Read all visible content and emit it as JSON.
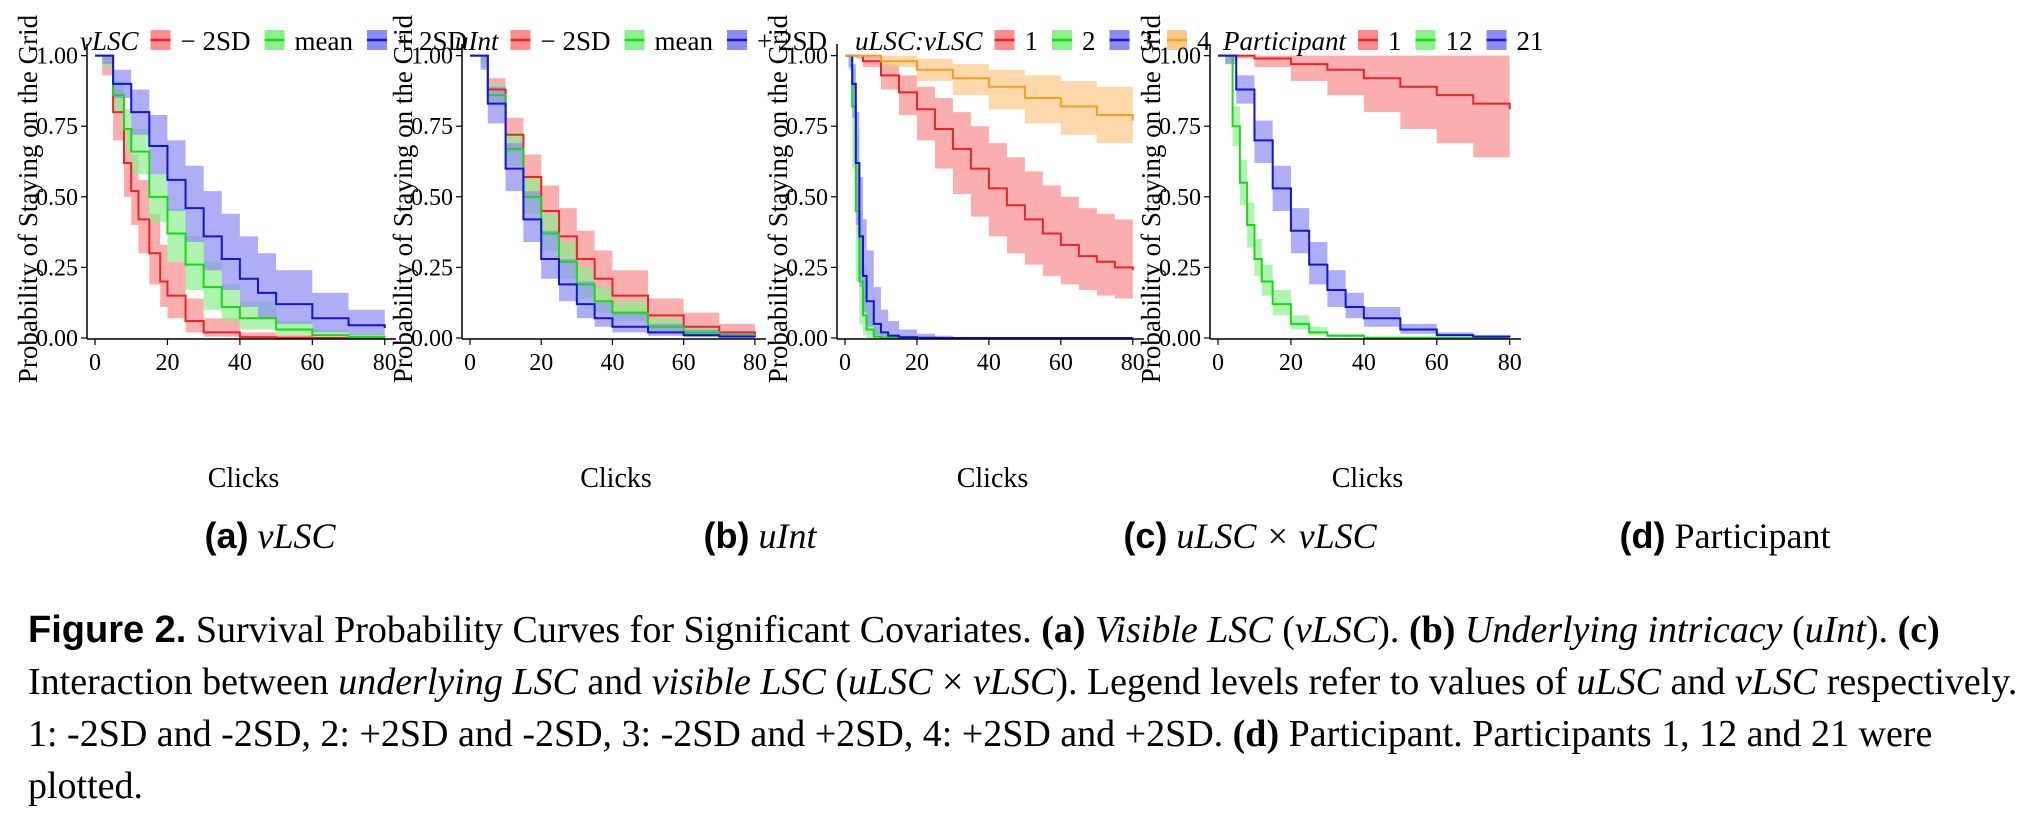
{
  "figure": {
    "label": "Figure 2.",
    "caption_parts": [
      {
        "t": "Survival Probability Curves for Significant Covariates. ",
        "s": ""
      },
      {
        "t": "(a)",
        "s": "b"
      },
      {
        "t": " ",
        "s": ""
      },
      {
        "t": "Visible LSC",
        "s": "i"
      },
      {
        "t": " (",
        "s": ""
      },
      {
        "t": "vLSC",
        "s": "i"
      },
      {
        "t": "). ",
        "s": ""
      },
      {
        "t": "(b)",
        "s": "b"
      },
      {
        "t": " ",
        "s": ""
      },
      {
        "t": "Underlying intricacy",
        "s": "i"
      },
      {
        "t": " (",
        "s": ""
      },
      {
        "t": "uInt",
        "s": "i"
      },
      {
        "t": "). ",
        "s": ""
      },
      {
        "t": "(c)",
        "s": "b"
      },
      {
        "t": " Interaction between ",
        "s": ""
      },
      {
        "t": "underlying LSC",
        "s": "i"
      },
      {
        "t": " and ",
        "s": ""
      },
      {
        "t": "visible LSC",
        "s": "i"
      },
      {
        "t": " (",
        "s": ""
      },
      {
        "t": "uLSC",
        "s": "i"
      },
      {
        "t": " × ",
        "s": ""
      },
      {
        "t": "vLSC",
        "s": "i"
      },
      {
        "t": "). Legend levels refer to values of ",
        "s": ""
      },
      {
        "t": "uLSC",
        "s": "i"
      },
      {
        "t": " and ",
        "s": ""
      },
      {
        "t": "vLSC",
        "s": "i"
      },
      {
        "t": " respectively. 1: -2SD and -2SD, 2: +2SD and -2SD, 3: -2SD and +2SD, 4: +2SD and +2SD. ",
        "s": ""
      },
      {
        "t": "(d)",
        "s": "b"
      },
      {
        "t": " Participant. Participants 1, 12 and 21 were plotted.",
        "s": ""
      }
    ]
  },
  "colors": {
    "red": "#e8252b",
    "green": "#18d818",
    "blue": "#1414d2",
    "orange": "#f4a020",
    "red_fill": "#fa8c8c",
    "green_fill": "#8cf08c",
    "blue_fill": "#8c8cf2",
    "orange_fill": "#fcc886"
  },
  "chart_data": [
    {
      "type": "line",
      "panel": "a",
      "sublabel_letter": "(a)",
      "sublabel_text": "vLSC",
      "sublabel_italic": true,
      "legend_title": "vLSC",
      "legend_placement": "top",
      "xlabel": "Clicks",
      "ylabel": "Probability of Staying on the Grid",
      "xlim": [
        0,
        82
      ],
      "ylim": [
        0,
        1.02
      ],
      "xticks": [
        0,
        20,
        40,
        60,
        80
      ],
      "yticks": [
        "0.00",
        "0.25",
        "0.50",
        "0.75",
        "1.00"
      ],
      "grid": false,
      "series": [
        {
          "name": "− 2SD",
          "color": "red",
          "x": [
            0,
            2,
            5,
            8,
            10,
            12,
            15,
            18,
            20,
            25,
            30,
            40,
            50,
            60,
            70,
            80
          ],
          "y": [
            1,
            1,
            0.8,
            0.62,
            0.52,
            0.42,
            0.3,
            0.2,
            0.15,
            0.06,
            0.02,
            0.003,
            0.001,
            0,
            0,
            0
          ],
          "lower": [
            1,
            0.93,
            0.7,
            0.5,
            0.4,
            0.3,
            0.19,
            0.11,
            0.07,
            0.02,
            0.005,
            0,
            0,
            0,
            0,
            0
          ],
          "upper": [
            1,
            1,
            0.88,
            0.74,
            0.65,
            0.56,
            0.44,
            0.33,
            0.27,
            0.14,
            0.07,
            0.02,
            0.01,
            0.005,
            0.002,
            0.001
          ]
        },
        {
          "name": "mean",
          "color": "green",
          "x": [
            0,
            2,
            5,
            8,
            10,
            15,
            20,
            25,
            30,
            35,
            40,
            50,
            60,
            70,
            80
          ],
          "y": [
            1,
            1,
            0.86,
            0.74,
            0.66,
            0.5,
            0.37,
            0.26,
            0.18,
            0.11,
            0.07,
            0.03,
            0.01,
            0.004,
            0.002
          ],
          "lower": [
            1,
            0.96,
            0.8,
            0.67,
            0.58,
            0.41,
            0.27,
            0.17,
            0.1,
            0.06,
            0.03,
            0.01,
            0.002,
            0,
            0
          ],
          "upper": [
            1,
            1,
            0.91,
            0.81,
            0.74,
            0.58,
            0.46,
            0.36,
            0.27,
            0.19,
            0.13,
            0.06,
            0.03,
            0.015,
            0.008
          ]
        },
        {
          "name": "+ 2SD",
          "color": "blue",
          "x": [
            0,
            2,
            5,
            10,
            15,
            20,
            25,
            30,
            35,
            40,
            45,
            50,
            60,
            70,
            80
          ],
          "y": [
            1,
            1,
            0.9,
            0.8,
            0.68,
            0.56,
            0.46,
            0.36,
            0.28,
            0.21,
            0.16,
            0.12,
            0.07,
            0.045,
            0.035
          ],
          "lower": [
            1,
            0.97,
            0.85,
            0.72,
            0.58,
            0.45,
            0.34,
            0.24,
            0.17,
            0.11,
            0.07,
            0.05,
            0.02,
            0.01,
            0.005
          ],
          "upper": [
            1,
            1,
            0.95,
            0.88,
            0.79,
            0.7,
            0.61,
            0.52,
            0.44,
            0.36,
            0.3,
            0.24,
            0.16,
            0.1,
            0.09
          ]
        }
      ]
    },
    {
      "type": "line",
      "panel": "b",
      "sublabel_letter": "(b)",
      "sublabel_text": "uInt",
      "sublabel_italic": true,
      "legend_title": "uInt",
      "legend_placement": "top",
      "xlabel": "Clicks",
      "ylabel": "Probability of Staying on the Grid",
      "xlim": [
        0,
        82
      ],
      "ylim": [
        0,
        1.02
      ],
      "xticks": [
        0,
        20,
        40,
        60,
        80
      ],
      "yticks": [
        "0.00",
        "0.25",
        "0.50",
        "0.75",
        "1.00"
      ],
      "grid": false,
      "series": [
        {
          "name": "− 2SD",
          "color": "red",
          "x": [
            0,
            3,
            5,
            10,
            15,
            20,
            25,
            30,
            35,
            40,
            50,
            60,
            70,
            80
          ],
          "y": [
            1,
            1,
            0.88,
            0.72,
            0.57,
            0.45,
            0.36,
            0.28,
            0.21,
            0.15,
            0.08,
            0.04,
            0.02,
            0.01
          ],
          "lower": [
            1,
            0.97,
            0.84,
            0.66,
            0.5,
            0.37,
            0.27,
            0.19,
            0.13,
            0.08,
            0.03,
            0.01,
            0.004,
            0.002
          ],
          "upper": [
            1,
            1,
            0.92,
            0.78,
            0.65,
            0.54,
            0.46,
            0.38,
            0.31,
            0.24,
            0.14,
            0.09,
            0.05,
            0.035
          ]
        },
        {
          "name": "mean",
          "color": "green",
          "x": [
            0,
            3,
            5,
            10,
            15,
            20,
            25,
            30,
            35,
            40,
            50,
            60,
            70,
            80
          ],
          "y": [
            1,
            1,
            0.86,
            0.67,
            0.5,
            0.37,
            0.27,
            0.19,
            0.13,
            0.09,
            0.04,
            0.02,
            0.01,
            0.005
          ],
          "lower": [
            1,
            0.96,
            0.82,
            0.61,
            0.44,
            0.31,
            0.21,
            0.14,
            0.09,
            0.06,
            0.02,
            0.008,
            0.003,
            0.001
          ],
          "upper": [
            1,
            1,
            0.9,
            0.73,
            0.57,
            0.44,
            0.34,
            0.25,
            0.18,
            0.13,
            0.07,
            0.035,
            0.02,
            0.01
          ]
        },
        {
          "name": "+ 2SD",
          "color": "blue",
          "x": [
            0,
            3,
            5,
            10,
            15,
            20,
            25,
            30,
            35,
            40,
            50,
            60,
            70,
            80
          ],
          "y": [
            1,
            1,
            0.83,
            0.6,
            0.42,
            0.28,
            0.19,
            0.12,
            0.07,
            0.04,
            0.02,
            0.01,
            0.005,
            0.003
          ],
          "lower": [
            1,
            0.95,
            0.76,
            0.52,
            0.34,
            0.21,
            0.13,
            0.07,
            0.04,
            0.02,
            0.008,
            0.003,
            0.001,
            0
          ],
          "upper": [
            1,
            1,
            0.89,
            0.69,
            0.52,
            0.38,
            0.28,
            0.2,
            0.13,
            0.09,
            0.05,
            0.03,
            0.02,
            0.012
          ]
        }
      ]
    },
    {
      "type": "line",
      "panel": "c",
      "sublabel_letter": "(c)",
      "sublabel_text": "uLSC × vLSC",
      "sublabel_italic": true,
      "legend_title": "uLSC:vLSC",
      "legend_placement": "top",
      "xlabel": "Clicks",
      "ylabel": "Probability of Staying on the Grid",
      "xlim": [
        0,
        82
      ],
      "ylim": [
        0,
        1.02
      ],
      "xticks": [
        0,
        20,
        40,
        60,
        80
      ],
      "yticks": [
        "0.00",
        "0.25",
        "0.50",
        "0.75",
        "1.00"
      ],
      "grid": false,
      "series": [
        {
          "name": "1",
          "color": "red",
          "x": [
            0,
            3,
            5,
            10,
            15,
            20,
            25,
            30,
            35,
            40,
            45,
            50,
            55,
            60,
            65,
            70,
            75,
            80
          ],
          "y": [
            1,
            1,
            0.98,
            0.93,
            0.87,
            0.81,
            0.74,
            0.67,
            0.6,
            0.53,
            0.47,
            0.42,
            0.37,
            0.33,
            0.29,
            0.27,
            0.25,
            0.24
          ],
          "lower": [
            1,
            0.99,
            0.96,
            0.88,
            0.79,
            0.7,
            0.6,
            0.51,
            0.43,
            0.36,
            0.3,
            0.26,
            0.22,
            0.19,
            0.17,
            0.15,
            0.14,
            0.13
          ],
          "upper": [
            1,
            1,
            1,
            0.97,
            0.93,
            0.89,
            0.85,
            0.8,
            0.75,
            0.69,
            0.64,
            0.59,
            0.54,
            0.5,
            0.46,
            0.44,
            0.42,
            0.42
          ]
        },
        {
          "name": "2",
          "color": "green",
          "x": [
            0,
            1,
            2,
            3,
            4,
            5,
            6,
            8,
            10,
            15,
            20,
            40,
            60,
            80
          ],
          "y": [
            1,
            1,
            0.82,
            0.45,
            0.2,
            0.08,
            0.03,
            0.005,
            0.001,
            0,
            0,
            0,
            0,
            0
          ],
          "lower": [
            1,
            0.95,
            0.6,
            0.2,
            0.05,
            0.01,
            0,
            0,
            0,
            0,
            0,
            0,
            0,
            0
          ],
          "upper": [
            1,
            1,
            0.95,
            0.72,
            0.45,
            0.25,
            0.12,
            0.04,
            0.015,
            0.002,
            0,
            0,
            0,
            0
          ]
        },
        {
          "name": "3",
          "color": "blue",
          "x": [
            0,
            1,
            2,
            3,
            4,
            5,
            6,
            8,
            10,
            12,
            15,
            20,
            25,
            30,
            40,
            60,
            80
          ],
          "y": [
            1,
            1,
            0.9,
            0.62,
            0.36,
            0.22,
            0.13,
            0.05,
            0.02,
            0.008,
            0.003,
            0.001,
            0,
            0,
            0,
            0,
            0
          ],
          "lower": [
            1,
            0.96,
            0.78,
            0.4,
            0.18,
            0.09,
            0.04,
            0.01,
            0.003,
            0.001,
            0,
            0,
            0,
            0,
            0,
            0,
            0
          ],
          "upper": [
            1,
            1,
            0.97,
            0.8,
            0.57,
            0.42,
            0.31,
            0.18,
            0.1,
            0.06,
            0.03,
            0.015,
            0.008,
            0.004,
            0.001,
            0,
            0
          ]
        },
        {
          "name": "4",
          "color": "orange",
          "x": [
            0,
            3,
            10,
            20,
            30,
            40,
            50,
            60,
            70,
            80
          ],
          "y": [
            1,
            1,
            0.98,
            0.95,
            0.92,
            0.89,
            0.85,
            0.82,
            0.79,
            0.77
          ],
          "lower": [
            1,
            0.995,
            0.96,
            0.91,
            0.86,
            0.81,
            0.76,
            0.72,
            0.69,
            0.67
          ],
          "upper": [
            1,
            1,
            1,
            0.99,
            0.97,
            0.95,
            0.93,
            0.91,
            0.89,
            0.88
          ]
        }
      ]
    },
    {
      "type": "line",
      "panel": "d",
      "sublabel_letter": "(d)",
      "sublabel_text": "Participant",
      "sublabel_italic": false,
      "legend_title": "Participant",
      "legend_placement": "top",
      "xlabel": "Clicks",
      "ylabel": "Probability of Staying on the Grid",
      "xlim": [
        0,
        82
      ],
      "ylim": [
        0,
        1.02
      ],
      "xticks": [
        0,
        20,
        40,
        60,
        80
      ],
      "yticks": [
        "0.00",
        "0.25",
        "0.50",
        "0.75",
        "1.00"
      ],
      "grid": false,
      "series": [
        {
          "name": "1",
          "color": "red",
          "x": [
            0,
            3,
            10,
            20,
            30,
            40,
            50,
            60,
            70,
            80
          ],
          "y": [
            1,
            1,
            0.99,
            0.97,
            0.95,
            0.92,
            0.89,
            0.86,
            0.83,
            0.81
          ],
          "lower": [
            1,
            0.99,
            0.96,
            0.91,
            0.86,
            0.8,
            0.74,
            0.69,
            0.64,
            0.61
          ],
          "upper": [
            1,
            1,
            1,
            1,
            1,
            1,
            1,
            1,
            1,
            1
          ]
        },
        {
          "name": "12",
          "color": "green",
          "x": [
            0,
            2,
            4,
            6,
            8,
            10,
            12,
            15,
            20,
            25,
            30,
            40,
            60,
            80
          ],
          "y": [
            1,
            1,
            0.75,
            0.55,
            0.4,
            0.28,
            0.2,
            0.12,
            0.05,
            0.02,
            0.008,
            0.001,
            0,
            0
          ],
          "lower": [
            1,
            0.97,
            0.68,
            0.47,
            0.32,
            0.22,
            0.15,
            0.08,
            0.03,
            0.01,
            0.003,
            0,
            0,
            0
          ],
          "upper": [
            1,
            1,
            0.82,
            0.63,
            0.48,
            0.35,
            0.26,
            0.17,
            0.08,
            0.04,
            0.015,
            0.003,
            0,
            0
          ]
        },
        {
          "name": "21",
          "color": "blue",
          "x": [
            0,
            2,
            5,
            10,
            15,
            20,
            25,
            30,
            35,
            40,
            50,
            60,
            70,
            80
          ],
          "y": [
            1,
            1,
            0.88,
            0.7,
            0.53,
            0.38,
            0.26,
            0.17,
            0.11,
            0.07,
            0.03,
            0.01,
            0.005,
            0.003
          ],
          "lower": [
            1,
            0.97,
            0.83,
            0.62,
            0.45,
            0.3,
            0.19,
            0.11,
            0.07,
            0.04,
            0.015,
            0.005,
            0.002,
            0.001
          ],
          "upper": [
            1,
            1,
            0.93,
            0.77,
            0.61,
            0.46,
            0.34,
            0.24,
            0.16,
            0.11,
            0.05,
            0.02,
            0.01,
            0.007
          ]
        }
      ]
    }
  ]
}
